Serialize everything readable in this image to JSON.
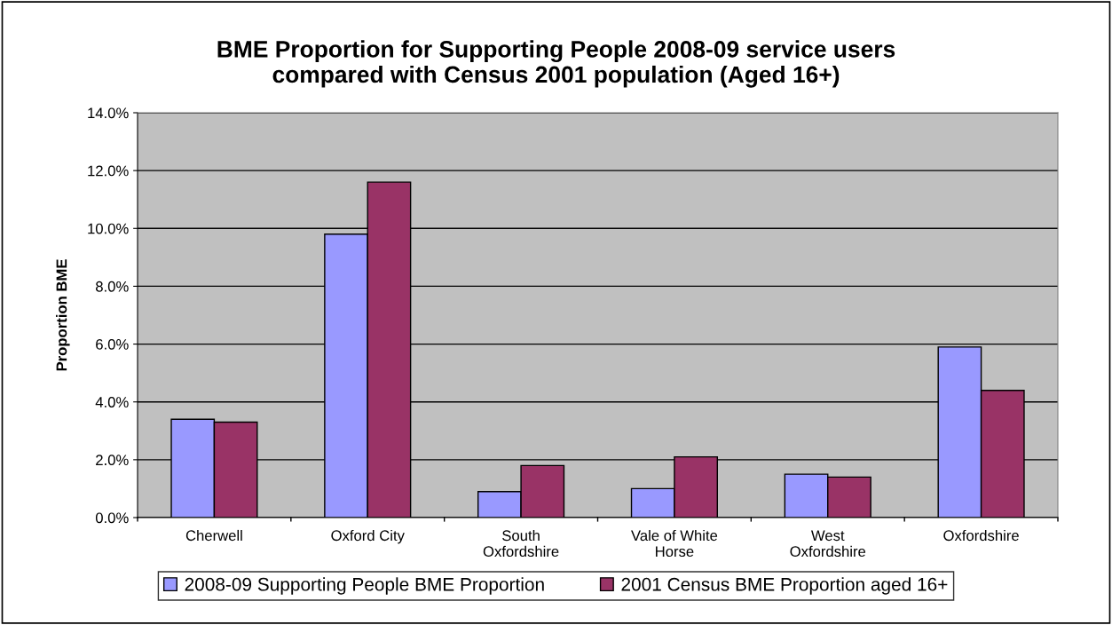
{
  "chart_data": {
    "type": "bar",
    "title": "BME Proportion for Supporting People 2008-09 service users\ncompared with Census 2001 population (Aged 16+)",
    "ylabel": "Proportion BME",
    "categories": [
      "Cherwell",
      "Oxford City",
      "South\nOxfordshire",
      "Vale of White\nHorse",
      "West\nOxfordshire",
      "Oxfordshire"
    ],
    "series": [
      {
        "name": "2008-09 Supporting People BME Proportion",
        "color": "#9999ff",
        "values": [
          3.4,
          9.8,
          0.9,
          1.0,
          1.5,
          5.9
        ]
      },
      {
        "name": "2001 Census BME Proportion aged 16+",
        "color": "#993366",
        "values": [
          3.3,
          11.6,
          1.8,
          2.1,
          1.4,
          4.4
        ]
      }
    ],
    "ylim": [
      0,
      14
    ],
    "yticks": [
      {
        "value": 0,
        "label": "0.0%"
      },
      {
        "value": 2,
        "label": "2.0%"
      },
      {
        "value": 4,
        "label": "4.0%"
      },
      {
        "value": 6,
        "label": "6.0%"
      },
      {
        "value": 8,
        "label": "8.0%"
      },
      {
        "value": 10,
        "label": "10.0%"
      },
      {
        "value": 12,
        "label": "12.0%"
      },
      {
        "value": 14,
        "label": "14.0%"
      }
    ],
    "grid": "y",
    "legend": "bottom"
  }
}
